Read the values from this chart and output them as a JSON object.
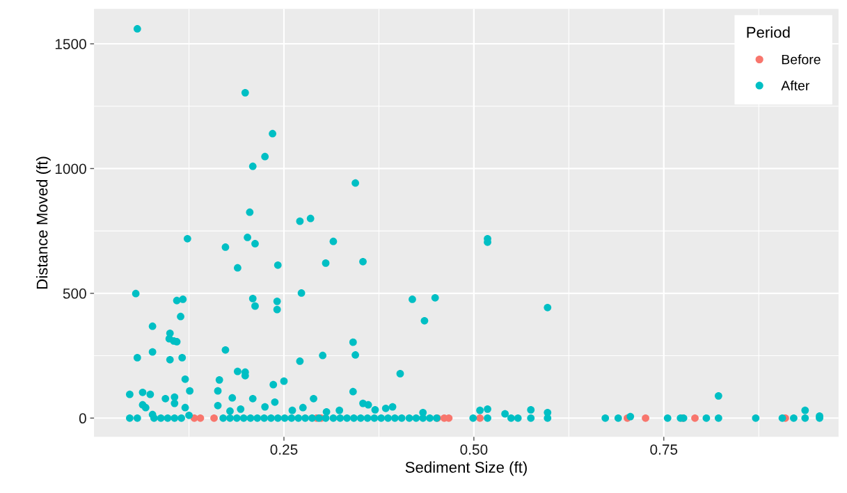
{
  "chart_data": {
    "type": "scatter",
    "xlabel": "Sediment Size (ft)",
    "ylabel": "Distance Moved (ft)",
    "legend_title": "Period",
    "legend": "top right",
    "grid": true,
    "marker": "circle",
    "xlim": [
      0.0,
      0.98
    ],
    "ylim": [
      -75,
      1640
    ],
    "xticks": [
      0.25,
      {
        "value": 0.5,
        "label": "0.50"
      },
      0.75
    ],
    "yticks": [
      0,
      500,
      1000,
      1500
    ],
    "series": [
      {
        "name": "Before",
        "color": "#f8766d",
        "x": [
          0.132,
          0.14,
          0.158,
          0.293,
          0.299,
          0.452,
          0.461,
          0.467,
          0.508,
          0.702,
          0.726,
          0.775,
          0.791,
          0.91
        ],
        "values": [
          0,
          0,
          0,
          0,
          0,
          0,
          0,
          0,
          0,
          0,
          0,
          0,
          0,
          0
        ]
      },
      {
        "name": "After",
        "color": "#00bfc4",
        "x": [
          0.057,
          0.199,
          0.235,
          0.225,
          0.209,
          0.205,
          0.271,
          0.285,
          0.123,
          0.202,
          0.212,
          0.173,
          0.189,
          0.242,
          0.344,
          0.315,
          0.305,
          0.354,
          0.518,
          0.518,
          0.055,
          0.109,
          0.117,
          0.114,
          0.077,
          0.1,
          0.099,
          0.109,
          0.105,
          0.077,
          0.057,
          0.1,
          0.116,
          0.12,
          0.126,
          0.047,
          0.064,
          0.074,
          0.094,
          0.106,
          0.106,
          0.064,
          0.068,
          0.12,
          0.077,
          0.047,
          0.057,
          0.079,
          0.088,
          0.097,
          0.106,
          0.115,
          0.125,
          0.273,
          0.209,
          0.212,
          0.241,
          0.241,
          0.173,
          0.271,
          0.189,
          0.199,
          0.199,
          0.165,
          0.236,
          0.25,
          0.163,
          0.182,
          0.209,
          0.163,
          0.419,
          0.449,
          0.435,
          0.341,
          0.301,
          0.344,
          0.403,
          0.341,
          0.289,
          0.354,
          0.361,
          0.37,
          0.384,
          0.393,
          0.433,
          0.275,
          0.499,
          0.508,
          0.518,
          0.518,
          0.541,
          0.549,
          0.558,
          0.575,
          0.575,
          0.597,
          0.597,
          0.597,
          0.673,
          0.69,
          0.706,
          0.755,
          0.772,
          0.776,
          0.806,
          0.822,
          0.822,
          0.871,
          0.906,
          0.921,
          0.936,
          0.936,
          0.955,
          0.955,
          0.17,
          0.179,
          0.188,
          0.197,
          0.206,
          0.215,
          0.224,
          0.233,
          0.242,
          0.251,
          0.26,
          0.269,
          0.278,
          0.287,
          0.296,
          0.305,
          0.315,
          0.324,
          0.333,
          0.342,
          0.351,
          0.36,
          0.369,
          0.378,
          0.387,
          0.396,
          0.405,
          0.415,
          0.424,
          0.433,
          0.442,
          0.451,
          0.179,
          0.193,
          0.225,
          0.238,
          0.261,
          0.306,
          0.323
        ],
        "values": [
          1560,
          1304,
          1140,
          1048,
          1009,
          825,
          789,
          800,
          719,
          724,
          699,
          685,
          602,
          613,
          942,
          708,
          621,
          627,
          719,
          705,
          499,
          471,
          476,
          407,
          368,
          340,
          318,
          306,
          309,
          265,
          242,
          234,
          242,
          156,
          109,
          95,
          103,
          95,
          78,
          84,
          59,
          53,
          42,
          42,
          14,
          0,
          0,
          0,
          0,
          0,
          0,
          0,
          11,
          501,
          479,
          449,
          468,
          435,
          273,
          228,
          187,
          184,
          170,
          153,
          134,
          148,
          109,
          81,
          78,
          50,
          476,
          482,
          390,
          304,
          251,
          253,
          178,
          106,
          78,
          59,
          53,
          33,
          39,
          45,
          22,
          42,
          0,
          31,
          36,
          0,
          17,
          0,
          0,
          33,
          0,
          22,
          0,
          443,
          0,
          0,
          6,
          0,
          0,
          0,
          0,
          89,
          0,
          0,
          0,
          0,
          31,
          0,
          8,
          0,
          0,
          0,
          0,
          0,
          0,
          0,
          0,
          0,
          0,
          0,
          0,
          0,
          0,
          0,
          0,
          0,
          0,
          0,
          0,
          0,
          0,
          0,
          0,
          0,
          0,
          0,
          0,
          0,
          0,
          0,
          0,
          0,
          28,
          36,
          45,
          64,
          31,
          25,
          31
        ]
      }
    ]
  }
}
